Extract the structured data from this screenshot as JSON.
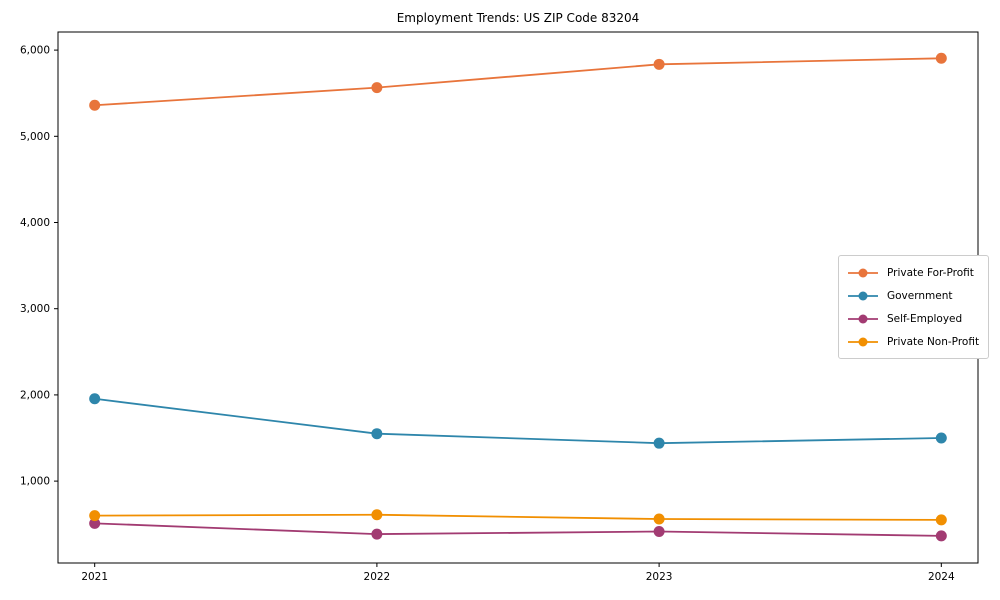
{
  "figure": {
    "background": "#ffffff"
  },
  "chart_data": {
    "type": "line",
    "title": "Employment Trends: US ZIP Code 83204",
    "categories": [
      2021,
      2022,
      2023,
      2024
    ],
    "x_tick_labels": [
      "2021",
      "2022",
      "2023",
      "2024"
    ],
    "y_ticks": [
      1000,
      2000,
      3000,
      4000,
      5000,
      6000
    ],
    "y_tick_labels": [
      "1,000",
      "2,000",
      "3,000",
      "4,000",
      "5,000",
      "6,000"
    ],
    "xlim": [
      2020.87,
      2024.13
    ],
    "ylim": [
      50,
      6210
    ],
    "grid": false,
    "axes_box": true,
    "legend_position": "center right",
    "marker": "circle",
    "series": [
      {
        "name": "Private For-Profit",
        "color": "#E8743B",
        "values": [
          5360,
          5565,
          5835,
          5905
        ]
      },
      {
        "name": "Government",
        "color": "#2E86AB",
        "values": [
          1955,
          1550,
          1440,
          1500
        ]
      },
      {
        "name": "Self-Employed",
        "color": "#A23B72",
        "values": [
          510,
          385,
          415,
          365
        ]
      },
      {
        "name": "Private Non-Profit",
        "color": "#F18F01",
        "values": [
          600,
          610,
          560,
          550
        ]
      }
    ]
  }
}
